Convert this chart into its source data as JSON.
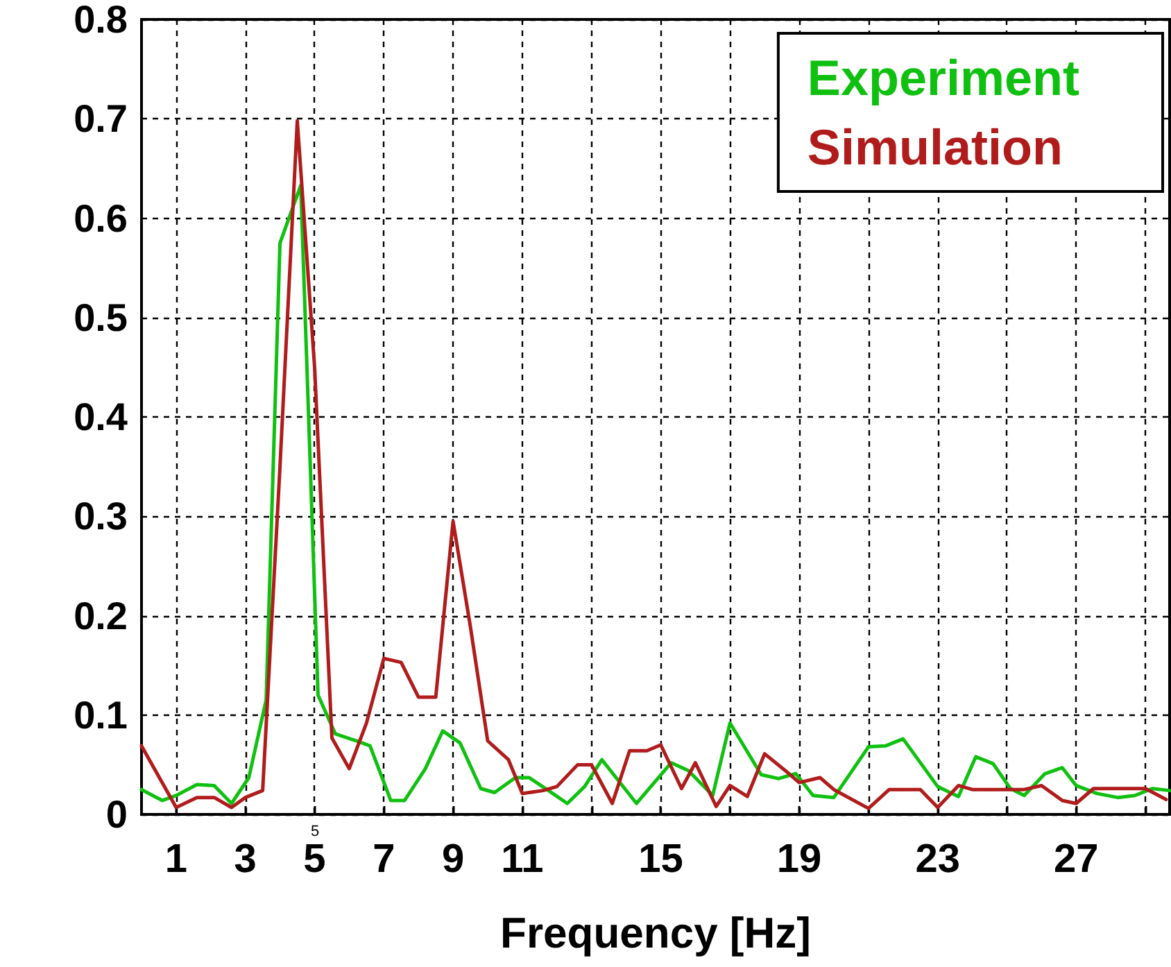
{
  "chart_data": {
    "type": "line",
    "xlabel": "Frequency [Hz]",
    "xlim": [
      0,
      29.7
    ],
    "ylim": [
      0,
      0.8
    ],
    "xticks": [
      1,
      3,
      5,
      7,
      9,
      11,
      {
        "value": 13,
        "label": null
      },
      15,
      {
        "value": 17,
        "label": null
      },
      19,
      {
        "value": 21,
        "label": null
      },
      23,
      {
        "value": 25,
        "label": null
      },
      27,
      {
        "value": 29,
        "label": null
      }
    ],
    "yticks": [
      0,
      0.1,
      0.2,
      0.3,
      0.4,
      0.5,
      0.6,
      0.7,
      0.8
    ],
    "grid": true,
    "legend": "top right",
    "marker": "none",
    "line_style": "solid",
    "annotations": [
      "5"
    ],
    "series": [
      {
        "name": "Experiment",
        "color": "#10c010",
        "x": [
          0,
          0.6,
          1.0,
          1.6,
          2.1,
          2.6,
          3.1,
          3.6,
          4.0,
          4.6,
          5.1,
          5.6,
          6.2,
          6.6,
          7.2,
          7.6,
          8.2,
          8.7,
          9.2,
          9.8,
          10.2,
          10.8,
          11.2,
          11.8,
          12.3,
          12.8,
          13.3,
          14.3,
          15.3,
          15.8,
          16.5,
          17.0,
          17.9,
          18.4,
          18.9,
          19.4,
          20.0,
          21.0,
          21.5,
          22.0,
          23.0,
          23.6,
          24.1,
          24.6,
          25.1,
          25.5,
          26.1,
          26.6,
          27.0,
          27.6,
          28.2,
          28.7,
          29.2,
          29.7
        ],
        "values": [
          0.025,
          0.014,
          0.019,
          0.03,
          0.029,
          0.011,
          0.037,
          0.115,
          0.575,
          0.633,
          0.12,
          0.081,
          0.074,
          0.069,
          0.014,
          0.014,
          0.046,
          0.084,
          0.072,
          0.026,
          0.022,
          0.037,
          0.037,
          0.023,
          0.011,
          0.028,
          0.055,
          0.011,
          0.052,
          0.044,
          0.019,
          0.092,
          0.04,
          0.036,
          0.041,
          0.019,
          0.017,
          0.068,
          0.069,
          0.076,
          0.028,
          0.018,
          0.058,
          0.051,
          0.026,
          0.019,
          0.041,
          0.047,
          0.029,
          0.021,
          0.017,
          0.019,
          0.026,
          0.024
        ]
      },
      {
        "name": "Simulation",
        "color": "#b01c1c",
        "x": [
          0,
          1.0,
          1.6,
          2.1,
          2.6,
          3.0,
          3.5,
          4.0,
          4.5,
          5.0,
          5.5,
          6.0,
          6.5,
          7.0,
          7.5,
          8.0,
          8.5,
          9.0,
          9.5,
          10.0,
          10.6,
          11.0,
          11.6,
          12.0,
          12.6,
          13.0,
          13.6,
          14.1,
          14.6,
          15.0,
          15.6,
          16.0,
          16.6,
          17.0,
          17.5,
          18.0,
          18.6,
          19.0,
          19.6,
          20.0,
          21.0,
          21.6,
          22.5,
          23.0,
          23.6,
          24.0,
          25.5,
          26.0,
          26.6,
          27.0,
          27.5,
          29.0,
          29.6
        ],
        "values": [
          0.069,
          0.007,
          0.017,
          0.017,
          0.007,
          0.017,
          0.024,
          0.35,
          0.698,
          0.45,
          0.077,
          0.046,
          0.092,
          0.157,
          0.153,
          0.118,
          0.118,
          0.295,
          0.189,
          0.074,
          0.055,
          0.021,
          0.024,
          0.028,
          0.05,
          0.05,
          0.011,
          0.064,
          0.064,
          0.07,
          0.026,
          0.052,
          0.008,
          0.029,
          0.018,
          0.061,
          0.044,
          0.032,
          0.037,
          0.025,
          0.006,
          0.025,
          0.025,
          0.007,
          0.029,
          0.025,
          0.025,
          0.029,
          0.014,
          0.011,
          0.026,
          0.026,
          0.015
        ]
      }
    ]
  }
}
